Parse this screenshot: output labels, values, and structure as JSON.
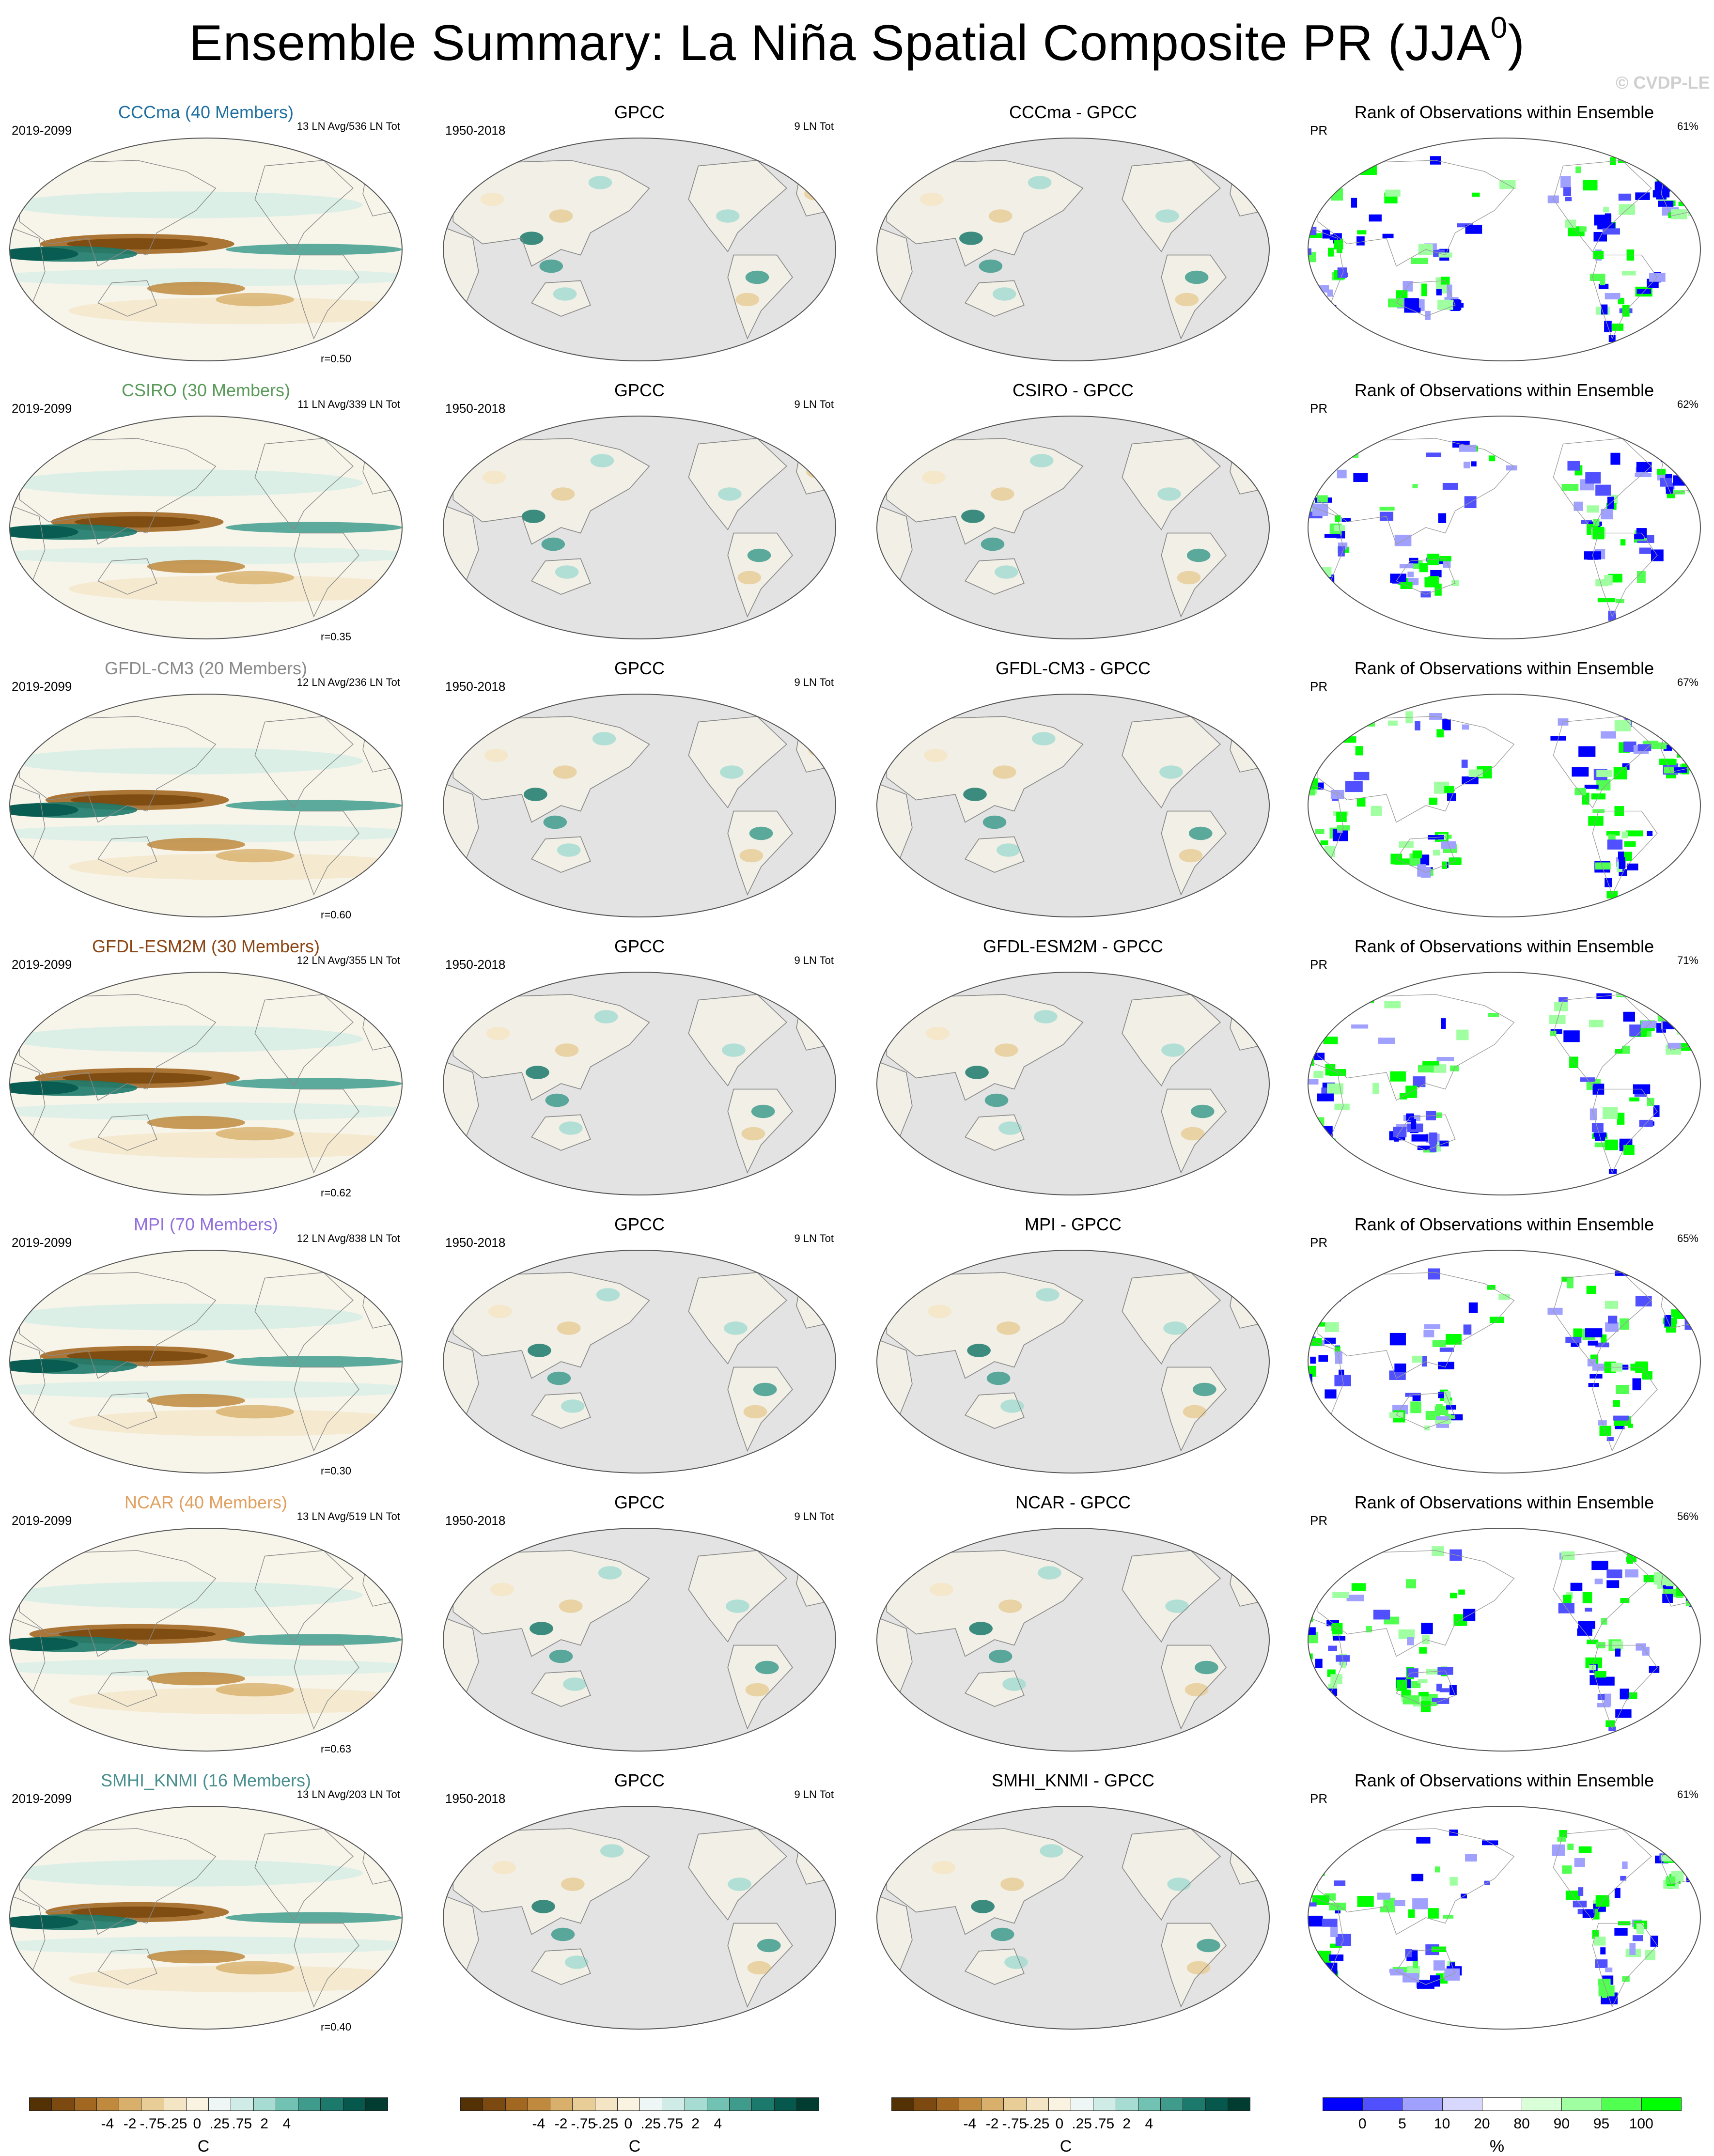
{
  "title": {
    "main": "Ensemble Summary: La Niña Spatial Composite PR (JJA",
    "sup": "0",
    "close": ")"
  },
  "credit": "© CVDP-LE",
  "colors": {
    "land_gray": "#e3e3e3",
    "coast": "#8a8a8a",
    "div_scale": [
      "#543005",
      "#7c4a10",
      "#a26721",
      "#c08a3e",
      "#d8b06c",
      "#e8cd97",
      "#f4e5c4",
      "#fbf3e2",
      "#eef7f5",
      "#cfece6",
      "#a6dcd1",
      "#72c2b3",
      "#3f9c8d",
      "#1b7a6c",
      "#06584c",
      "#003c30"
    ],
    "rank_scale": [
      "#0000ff",
      "#5050ff",
      "#a0a0ff",
      "#d8d8ff",
      "#ffffff",
      "#d8ffd8",
      "#a0ffa0",
      "#50ff50",
      "#00ff00"
    ]
  },
  "chart_data": {
    "type": "heatmap",
    "columns": [
      "model",
      "GPCC",
      "model - GPCC",
      "Rank of Observations within Ensemble"
    ],
    "rows": [
      {
        "model": "CCCma (40 Members)",
        "model_color": "#1f6fa0",
        "period": "2019-2099",
        "ln_info": "13 LN Avg/536 LN Tot",
        "r": "r=0.50",
        "obs_title": "GPCC",
        "obs_period": "1950-2018",
        "obs_info": "9 LN Tot",
        "diff_title": "CCCma - GPCC",
        "rank_title": "Rank of Observations within Ensemble",
        "rank_var": "PR",
        "rank_pct": "61%",
        "strength": 0.9
      },
      {
        "model": "CSIRO (30 Members)",
        "model_color": "#5a9a5a",
        "period": "2019-2099",
        "ln_info": "11 LN Avg/339 LN Tot",
        "r": "r=0.35",
        "obs_title": "GPCC",
        "obs_period": "1950-2018",
        "obs_info": "9 LN Tot",
        "diff_title": "CSIRO - GPCC",
        "rank_title": "Rank of Observations within Ensemble",
        "rank_var": "PR",
        "rank_pct": "62%",
        "strength": 0.8
      },
      {
        "model": "GFDL-CM3 (20 Members)",
        "model_color": "#8a8a8a",
        "period": "2019-2099",
        "ln_info": "12 LN Avg/236 LN Tot",
        "r": "r=0.60",
        "obs_title": "GPCC",
        "obs_period": "1950-2018",
        "obs_info": "9 LN Tot",
        "diff_title": "GFDL-CM3 - GPCC",
        "rank_title": "Rank of Observations within Ensemble",
        "rank_var": "PR",
        "rank_pct": "67%",
        "strength": 0.85
      },
      {
        "model": "GFDL-ESM2M (30 Members)",
        "model_color": "#8b4513",
        "period": "2019-2099",
        "ln_info": "12 LN Avg/355 LN Tot",
        "r": "r=0.62",
        "obs_title": "GPCC",
        "obs_period": "1950-2018",
        "obs_info": "9 LN Tot",
        "diff_title": "GFDL-ESM2M - GPCC",
        "rank_title": "Rank of Observations within Ensemble",
        "rank_var": "PR",
        "rank_pct": "71%",
        "strength": 0.95
      },
      {
        "model": "MPI (70 Members)",
        "model_color": "#9370db",
        "period": "2019-2099",
        "ln_info": "12 LN Avg/838 LN Tot",
        "r": "r=0.30",
        "obs_title": "GPCC",
        "obs_period": "1950-2018",
        "obs_info": "9 LN Tot",
        "diff_title": "MPI - GPCC",
        "rank_title": "Rank of Observations within Ensemble",
        "rank_var": "PR",
        "rank_pct": "65%",
        "strength": 0.9
      },
      {
        "model": "NCAR (40 Members)",
        "model_color": "#e0a060",
        "period": "2019-2099",
        "ln_info": "13 LN Avg/519 LN Tot",
        "r": "r=0.63",
        "obs_title": "GPCC",
        "obs_period": "1950-2018",
        "obs_info": "9 LN Tot",
        "diff_title": "NCAR - GPCC",
        "rank_title": "Rank of Observations within Ensemble",
        "rank_var": "PR",
        "rank_pct": "56%",
        "strength": 1.0
      },
      {
        "model": "SMHI_KNMI (16 Members)",
        "model_color": "#4a8f8f",
        "period": "2019-2099",
        "ln_info": "13 LN Avg/203 LN Tot",
        "r": "r=0.40",
        "obs_title": "GPCC",
        "obs_period": "1950-2018",
        "obs_info": "9 LN Tot",
        "diff_title": "SMHI_KNMI - GPCC",
        "rank_title": "Rank of Observations within Ensemble",
        "rank_var": "PR",
        "rank_pct": "61%",
        "strength": 0.85
      }
    ],
    "colorbars": [
      {
        "labels": [
          "-4",
          "-2",
          "-.75",
          "-.25",
          "0",
          ".25",
          ".75",
          "2",
          "4"
        ],
        "unit": "C",
        "scale": "div"
      },
      {
        "labels": [
          "-4",
          "-2",
          "-.75",
          "-.25",
          "0",
          ".25",
          ".75",
          "2",
          "4"
        ],
        "unit": "C",
        "scale": "div"
      },
      {
        "labels": [
          "-4",
          "-2",
          "-.75",
          "-.25",
          "0",
          ".25",
          ".75",
          "2",
          "4"
        ],
        "unit": "C",
        "scale": "div"
      },
      {
        "labels": [
          "0",
          "5",
          "10",
          "20",
          "80",
          "90",
          "95",
          "100"
        ],
        "unit": "%",
        "scale": "rank"
      }
    ]
  }
}
